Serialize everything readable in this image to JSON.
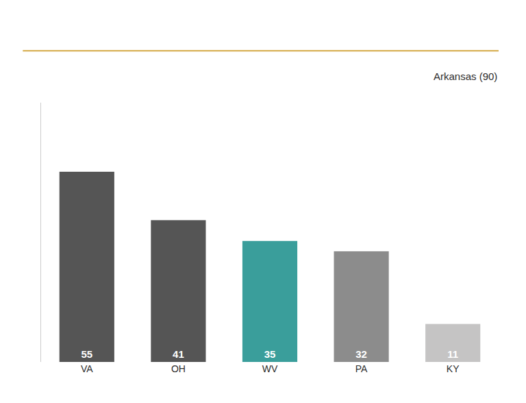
{
  "chart_data": {
    "type": "bar",
    "categories": [
      "VA",
      "OH",
      "WV",
      "PA",
      "KY"
    ],
    "values": [
      55,
      41,
      35,
      32,
      11
    ],
    "colors": [
      "#555555",
      "#555555",
      "#3a9e9b",
      "#8c8c8c",
      "#c5c4c4"
    ],
    "ylim": [
      0,
      75
    ],
    "annotation": "Arkansas (90)",
    "data_labels": true,
    "tick_labels": "x",
    "grid": false
  }
}
